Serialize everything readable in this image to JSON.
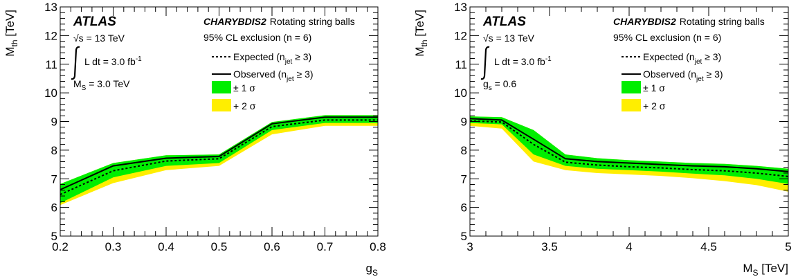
{
  "chart_data": [
    {
      "type": "line",
      "experiment": "ATLAS",
      "model_name": "CHARYBDIS2",
      "model_desc": "Rotating string balls",
      "exclusion": "95% CL exclusion (n = 6)",
      "energy": "√s = 13 TeV",
      "lumi_prefix": "L dt = 3.0 fb",
      "lumi_exp": "-1",
      "param_main": "M",
      "param_sub": "S",
      "param_rest": " = 3.0 TeV",
      "ylabel_main": "M",
      "ylabel_sub": "th",
      "ylabel_rest": " [TeV]",
      "xlabel_main": "g",
      "xlabel_sub": "S",
      "xlabel_rest": "",
      "xlim": [
        0.2,
        0.8
      ],
      "ylim": [
        5,
        13
      ],
      "xticks": [
        "0.2",
        "0.3",
        "0.4",
        "0.5",
        "0.6",
        "0.7",
        "0.8"
      ],
      "xtick_values": [
        0.2,
        0.3,
        0.4,
        0.5,
        0.6,
        0.7,
        0.8
      ],
      "yticks": [
        "5",
        "6",
        "7",
        "8",
        "9",
        "10",
        "11",
        "12",
        "13"
      ],
      "ytick_values": [
        5,
        6,
        7,
        8,
        9,
        10,
        11,
        12,
        13
      ],
      "x": [
        0.2,
        0.3,
        0.4,
        0.5,
        0.6,
        0.7,
        0.8
      ],
      "expected": [
        6.45,
        7.28,
        7.62,
        7.7,
        8.82,
        9.05,
        9.05
      ],
      "observed": [
        6.62,
        7.45,
        7.72,
        7.78,
        8.92,
        9.15,
        9.15
      ],
      "band1_low": [
        6.15,
        7.05,
        7.45,
        7.55,
        8.7,
        8.95,
        8.95
      ],
      "band1_high": [
        6.82,
        7.55,
        7.82,
        7.85,
        8.98,
        9.22,
        9.22
      ],
      "band2_low": [
        6.08,
        6.85,
        7.3,
        7.45,
        8.55,
        8.85,
        8.85
      ],
      "legend": {
        "expected_main": "Expected (n",
        "expected_sub": "jet",
        "expected_rest": " ≥ 3)",
        "observed_main": "Observed (n",
        "observed_sub": "jet",
        "observed_rest": " ≥ 3)",
        "sigma1": "± 1 σ",
        "sigma2": "+ 2 σ"
      }
    },
    {
      "type": "line",
      "experiment": "ATLAS",
      "model_name": "CHARYBDIS2",
      "model_desc": "Rotating string balls",
      "exclusion": "95% CL exclusion (n = 6)",
      "energy": "√s = 13 TeV",
      "lumi_prefix": "L dt = 3.0 fb",
      "lumi_exp": "-1",
      "param_main": "g",
      "param_sub": "s",
      "param_rest": " = 0.6",
      "ylabel_main": "M",
      "ylabel_sub": "th",
      "ylabel_rest": " [TeV]",
      "xlabel_main": "M",
      "xlabel_sub": "S",
      "xlabel_rest": " [TeV]",
      "xlim": [
        3,
        5
      ],
      "ylim": [
        5,
        13
      ],
      "xticks": [
        "3",
        "3.5",
        "4",
        "4.5",
        "5"
      ],
      "xtick_values": [
        3,
        3.5,
        4,
        4.5,
        5
      ],
      "yticks": [
        "5",
        "6",
        "7",
        "8",
        "9",
        "10",
        "11",
        "12",
        "13"
      ],
      "ytick_values": [
        5,
        6,
        7,
        8,
        9,
        10,
        11,
        12,
        13
      ],
      "x": [
        3.0,
        3.2,
        3.4,
        3.6,
        3.8,
        4.0,
        4.2,
        4.4,
        4.6,
        4.8,
        5.0
      ],
      "expected": [
        9.02,
        8.98,
        8.2,
        7.58,
        7.48,
        7.42,
        7.38,
        7.32,
        7.28,
        7.2,
        7.08
      ],
      "observed": [
        9.1,
        9.05,
        8.38,
        7.7,
        7.6,
        7.55,
        7.5,
        7.45,
        7.42,
        7.35,
        7.25
      ],
      "band1_low": [
        8.95,
        8.9,
        7.85,
        7.45,
        7.35,
        7.3,
        7.25,
        7.18,
        7.12,
        7.0,
        6.82
      ],
      "band1_high": [
        9.18,
        9.15,
        8.7,
        7.85,
        7.72,
        7.65,
        7.6,
        7.55,
        7.52,
        7.45,
        7.35
      ],
      "band2_low": [
        8.85,
        8.75,
        7.6,
        7.3,
        7.2,
        7.15,
        7.1,
        7.02,
        6.92,
        6.78,
        6.55
      ],
      "legend": {
        "expected_main": "Expected (n",
        "expected_sub": "jet",
        "expected_rest": " ≥ 3)",
        "observed_main": "Observed (n",
        "observed_sub": "jet",
        "observed_rest": " ≥ 3)",
        "sigma1": "± 1 σ",
        "sigma2": "+ 2 σ"
      }
    }
  ],
  "colors": {
    "band1": "#00ee00",
    "band2": "#ffee00",
    "line": "#000000"
  }
}
